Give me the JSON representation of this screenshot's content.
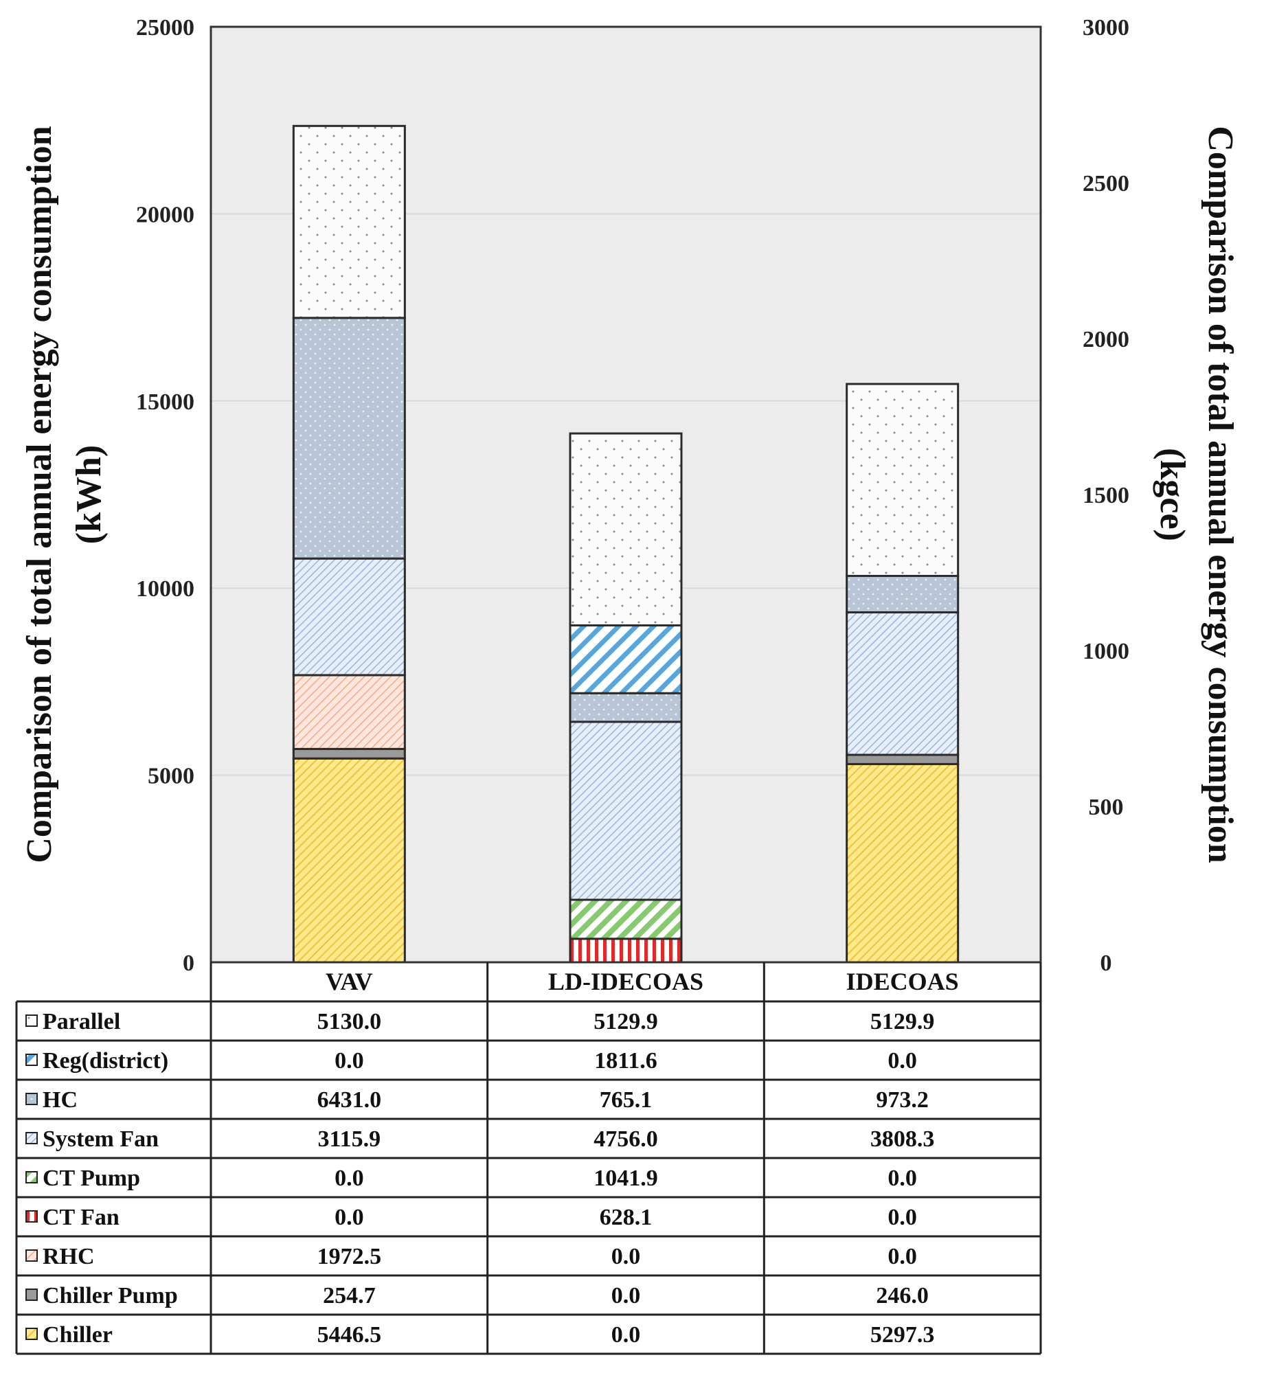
{
  "chart_data": {
    "type": "stacked-bar",
    "categories": [
      "VAV",
      "LD-IDECOAS",
      "IDECOAS"
    ],
    "ylabel_left_line1": "Comparison of total annual energy consumption",
    "ylabel_left_line2": "(kWh)",
    "ylabel_right_line1": "Comparison of total annual energy consumption",
    "ylabel_right_line2": "(kgce)",
    "ylim_left": [
      0,
      25000
    ],
    "yticks_left": [
      "0",
      "5000",
      "10000",
      "15000",
      "20000",
      "25000"
    ],
    "ytick_values_left": [
      0,
      5000,
      10000,
      15000,
      20000,
      25000
    ],
    "ylim_right": [
      0,
      3000
    ],
    "yticks_right": [
      "0",
      "500",
      "1000",
      "1500",
      "2000",
      "2500",
      "3000"
    ],
    "ytick_values_right": [
      0,
      500,
      1000,
      1500,
      2000,
      2500,
      3000
    ],
    "grid": true,
    "series_bottom_to_top": [
      {
        "name": "Chiller",
        "values": [
          5446.5,
          0.0,
          5297.3
        ],
        "labels": [
          "5446.5",
          "0.0",
          "5297.3"
        ],
        "color": "#f6d04d",
        "pattern": "diag-yellow"
      },
      {
        "name": "Chiller Pump",
        "values": [
          254.7,
          0.0,
          246.0
        ],
        "labels": [
          "254.7",
          "0.0",
          "246.0"
        ],
        "color": "#a6a6a6",
        "pattern": "solid-gray"
      },
      {
        "name": "RHC",
        "values": [
          1972.5,
          0.0,
          0.0
        ],
        "labels": [
          "1972.5",
          "0.0",
          "0.0"
        ],
        "color": "#f4b89c",
        "pattern": "diag-salmon"
      },
      {
        "name": "CT Fan",
        "values": [
          0.0,
          628.1,
          0.0
        ],
        "labels": [
          "0.0",
          "628.1",
          "0.0"
        ],
        "color": "#e03030",
        "pattern": "vert-red"
      },
      {
        "name": "CT Pump",
        "values": [
          0.0,
          1041.9,
          0.0
        ],
        "labels": [
          "0.0",
          "1041.9",
          "0.0"
        ],
        "color": "#7cc46a",
        "pattern": "diag-green"
      },
      {
        "name": "System Fan",
        "values": [
          3115.9,
          4756.0,
          3808.3
        ],
        "labels": [
          "3115.9",
          "4756.0",
          "3808.3"
        ],
        "color": "#8fb1de",
        "pattern": "diag-lightblue"
      },
      {
        "name": "HC",
        "values": [
          6431.0,
          765.1,
          973.2
        ],
        "labels": [
          "6431.0",
          "765.1",
          "973.2"
        ],
        "color": "#aebfd2",
        "pattern": "dots-steel"
      },
      {
        "name": "Reg(district)",
        "values": [
          0.0,
          1811.6,
          0.0
        ],
        "labels": [
          "0.0",
          "1811.6",
          "0.0"
        ],
        "color": "#4fa3dc",
        "pattern": "diag-blue"
      },
      {
        "name": "Parallel",
        "values": [
          5130.0,
          5129.9,
          5129.9
        ],
        "labels": [
          "5130.0",
          "5129.9",
          "5129.9"
        ],
        "color": "#bdbdbd",
        "pattern": "dots-white"
      }
    ],
    "table_row_order": [
      "Parallel",
      "Reg(district)",
      "HC",
      "System Fan",
      "CT Pump",
      "CT Fan",
      "RHC",
      "Chiller Pump",
      "Chiller"
    ]
  }
}
